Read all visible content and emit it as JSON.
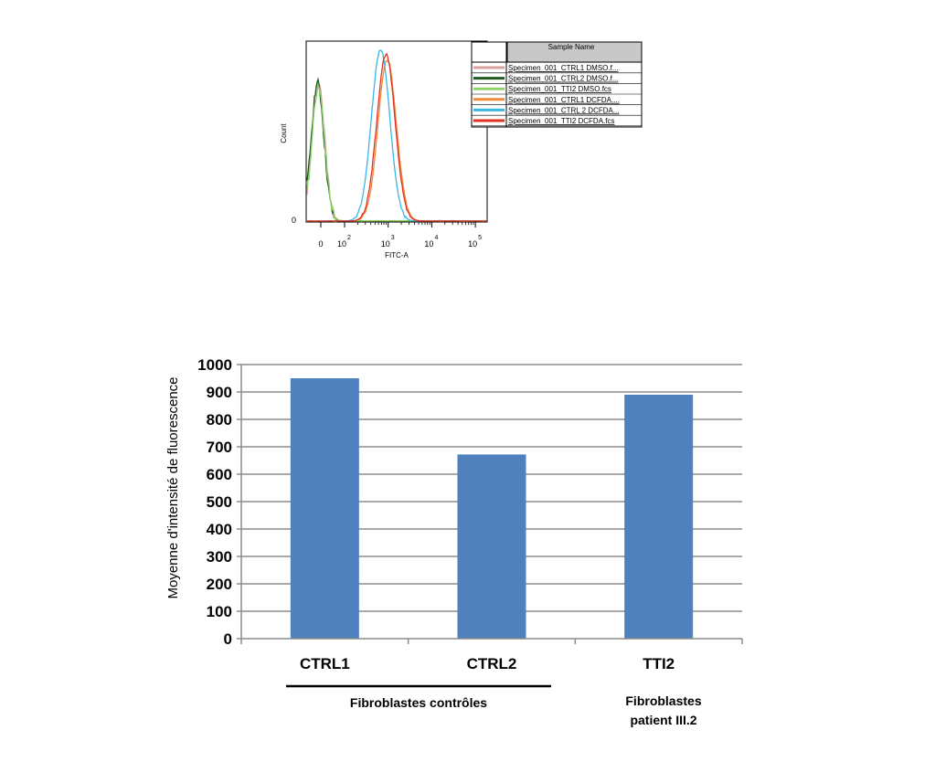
{
  "chart_data": [
    {
      "type": "line",
      "subtype": "flow-cytometry-histogram",
      "xlabel": "FITC-A",
      "ylabel": "Count",
      "x_scale": "biexponential",
      "x_ticks": [
        "0",
        "10",
        "10",
        "10",
        "10"
      ],
      "x_tick_exponents": [
        "",
        "2",
        "3",
        "4",
        "5"
      ],
      "y_ticks": [
        "0"
      ],
      "legend": {
        "header": "Sample Name",
        "placement": "right",
        "entries": [
          {
            "name": "Specimen_001_CTRL1 DMSO.f...",
            "color": "#d8a0a0"
          },
          {
            "name": "Specimen_001_CTRL2 DMSO.f...",
            "color": "#1f5a1f"
          },
          {
            "name": "Specimen_001_TTI2 DMSO.fcs",
            "color": "#8fd46a"
          },
          {
            "name": "Specimen_001_CTRL1 DCFDA....",
            "color": "#f08a3c"
          },
          {
            "name": "Specimen_001_CTRL 2 DCFDA...",
            "color": "#39b7e6"
          },
          {
            "name": "Specimen_001_TTI2 DCFDA.fcs",
            "color": "#e03020"
          }
        ]
      },
      "series": [
        {
          "name": "Specimen_001_CTRL1 DMSO.f...",
          "peak_x": 25,
          "peak_height": 0.78
        },
        {
          "name": "Specimen_001_CTRL2 DMSO.f...",
          "peak_x": 24,
          "peak_height": 0.77
        },
        {
          "name": "Specimen_001_TTI2 DMSO.fcs",
          "peak_x": 25,
          "peak_height": 0.75
        },
        {
          "name": "Specimen_001_CTRL1 DCFDA....",
          "peak_x": 950,
          "peak_height": 0.9
        },
        {
          "name": "Specimen_001_CTRL 2 DCFDA...",
          "peak_x": 670,
          "peak_height": 0.96
        },
        {
          "name": "Specimen_001_TTI2 DCFDA.fcs",
          "peak_x": 890,
          "peak_height": 0.93
        }
      ]
    },
    {
      "type": "bar",
      "ylabel": "Moyenne d'intensité de fluorescence",
      "xlabel": "",
      "categories": [
        "CTRL1",
        "CTRL2",
        "TTI2"
      ],
      "values": [
        950,
        672,
        890
      ],
      "ylim": [
        0,
        1000
      ],
      "y_ticks": [
        0,
        100,
        200,
        300,
        400,
        500,
        600,
        700,
        800,
        900,
        1000
      ],
      "grid": true,
      "bar_color": "#4f81bd",
      "groups": [
        {
          "label": "Fibroblastes contrôles",
          "categories": [
            "CTRL1",
            "CTRL2"
          ]
        },
        {
          "label_line1": "Fibroblastes",
          "label_line2": "patient III.2",
          "categories": [
            "TTI2"
          ]
        }
      ]
    }
  ]
}
